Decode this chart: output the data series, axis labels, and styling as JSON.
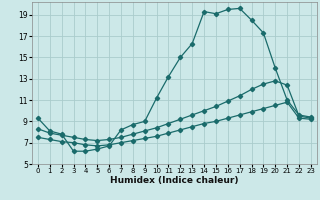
{
  "xlabel": "Humidex (Indice chaleur)",
  "bg_color": "#cce8e8",
  "grid_color": "#aacccc",
  "line_color": "#1a6b6b",
  "xlim": [
    -0.5,
    23.5
  ],
  "ylim": [
    5,
    20.2
  ],
  "xticks": [
    0,
    1,
    2,
    3,
    4,
    5,
    6,
    7,
    8,
    9,
    10,
    11,
    12,
    13,
    14,
    15,
    16,
    17,
    18,
    19,
    20,
    21,
    22,
    23
  ],
  "yticks": [
    5,
    7,
    9,
    11,
    13,
    15,
    17,
    19
  ],
  "line1_x": [
    0,
    1,
    2,
    3,
    4,
    5,
    6,
    7,
    8,
    9,
    10,
    11,
    12,
    13,
    14,
    15,
    16,
    17,
    18,
    19,
    20,
    21,
    22,
    23
  ],
  "line1_y": [
    9.3,
    8.1,
    7.8,
    6.2,
    6.2,
    6.4,
    6.7,
    8.2,
    8.7,
    9.0,
    11.2,
    13.2,
    15.0,
    16.3,
    19.3,
    19.1,
    19.5,
    19.6,
    18.5,
    17.3,
    14.0,
    11.0,
    9.6,
    9.4
  ],
  "line2_x": [
    0,
    1,
    2,
    3,
    4,
    5,
    6,
    7,
    8,
    9,
    10,
    11,
    12,
    13,
    14,
    15,
    16,
    17,
    18,
    19,
    20,
    21,
    22,
    23
  ],
  "line2_y": [
    8.3,
    7.9,
    7.7,
    7.5,
    7.3,
    7.2,
    7.3,
    7.5,
    7.8,
    8.1,
    8.4,
    8.8,
    9.2,
    9.6,
    10.0,
    10.4,
    10.9,
    11.4,
    12.0,
    12.5,
    12.8,
    12.4,
    9.5,
    9.3
  ],
  "line3_x": [
    0,
    1,
    2,
    3,
    4,
    5,
    6,
    7,
    8,
    9,
    10,
    11,
    12,
    13,
    14,
    15,
    16,
    17,
    18,
    19,
    20,
    21,
    22,
    23
  ],
  "line3_y": [
    7.5,
    7.3,
    7.1,
    7.0,
    6.8,
    6.7,
    6.8,
    7.0,
    7.2,
    7.4,
    7.6,
    7.9,
    8.2,
    8.5,
    8.8,
    9.0,
    9.3,
    9.6,
    9.9,
    10.2,
    10.5,
    10.8,
    9.3,
    9.2
  ]
}
